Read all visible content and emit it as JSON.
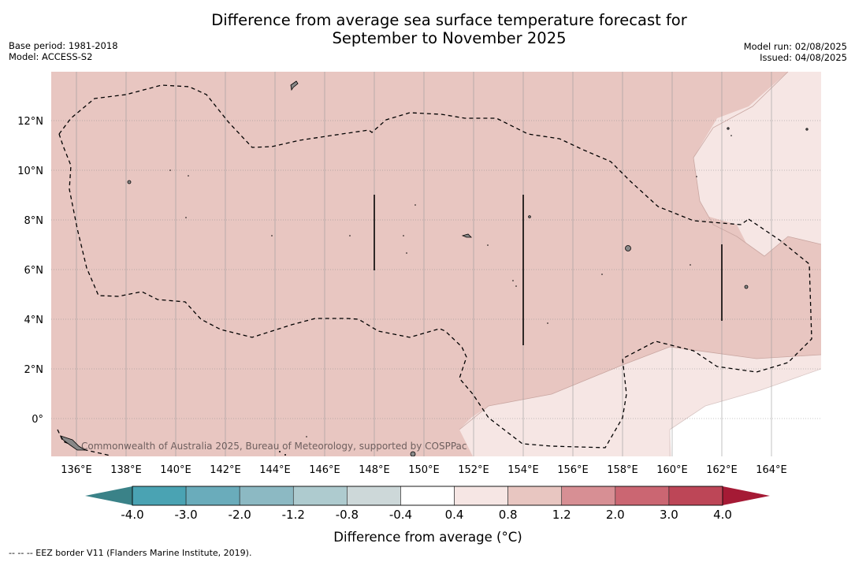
{
  "title": {
    "line1": "Difference from average sea surface temperature forecast for",
    "line2": "September to November 2025"
  },
  "meta": {
    "base_period": "Base period: 1981-2018",
    "model": "Model: ACCESS-S2",
    "model_run": "Model run: 02/08/2025",
    "issued": "Issued: 04/08/2025"
  },
  "map": {
    "lon_ticks": [
      "136°E",
      "138°E",
      "140°E",
      "142°E",
      "144°E",
      "146°E",
      "148°E",
      "150°E",
      "152°E",
      "154°E",
      "156°E",
      "158°E",
      "160°E",
      "162°E",
      "164°E"
    ],
    "lat_ticks": [
      "12°N",
      "10°N",
      "8°N",
      "6°N",
      "4°N",
      "2°N",
      "0°"
    ],
    "credit": "Commonwealth of Australia 2025, Bureau of Meteorology, supported by COSPPac"
  },
  "colorbar": {
    "labels": [
      "-4.0",
      "-3.0",
      "-2.0",
      "-1.2",
      "-0.8",
      "-0.4",
      "0.4",
      "0.8",
      "1.2",
      "2.0",
      "3.0",
      "4.0"
    ],
    "colors": [
      "#4aa3b3",
      "#6aacbb",
      "#8cb9c3",
      "#aecbcf",
      "#cdd8d9",
      "#ffffff",
      "#f6e6e4",
      "#e8c6c1",
      "#d78f94",
      "#cb6672",
      "#bd4657"
    ],
    "extend_low": "#3a8288",
    "extend_high": "#a51a35",
    "title": "Difference from average (°C)"
  },
  "footnote": "--  --  -- EEZ border V11 (Flanders Marine Institute, 2019).",
  "fill_colors": {
    "warm": "#e8c6c1",
    "light": "#f6e6e4",
    "neutral": "#ffffff"
  }
}
